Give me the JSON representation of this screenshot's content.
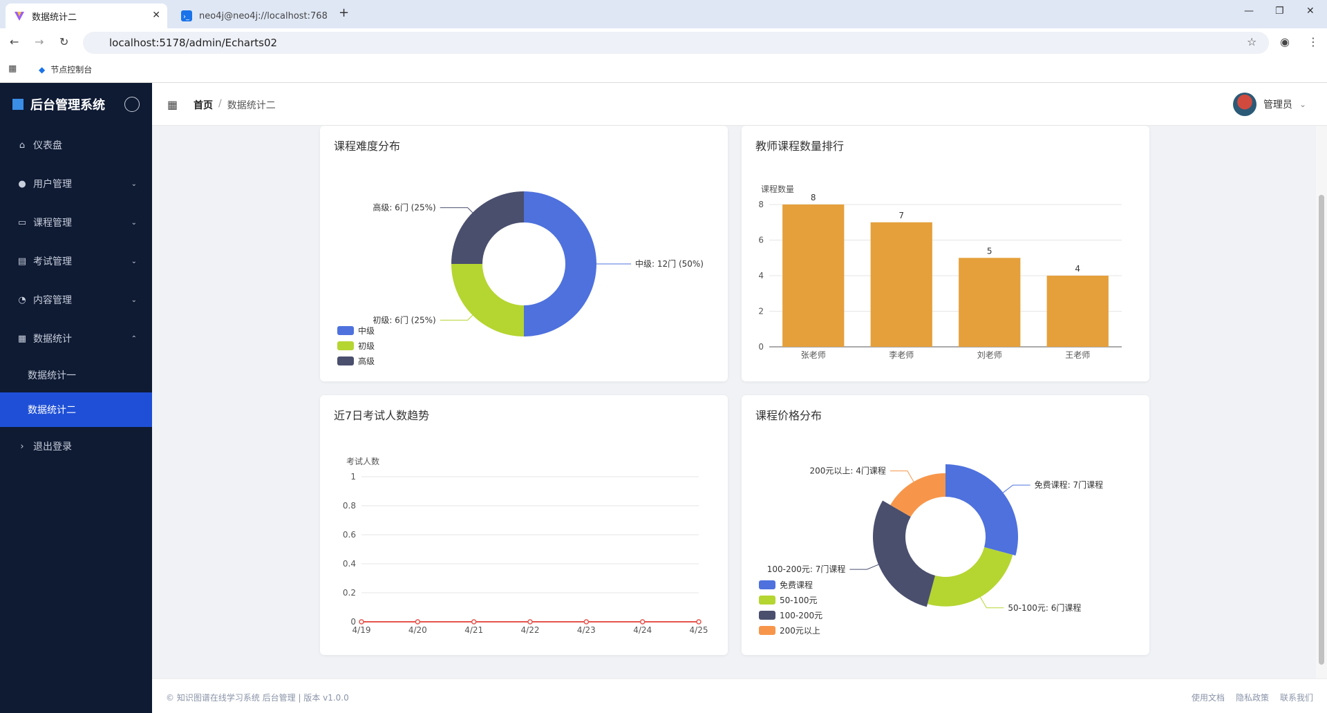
{
  "browser": {
    "tabs": [
      {
        "title": "数据统计二",
        "active": true
      },
      {
        "title": "neo4j@neo4j://localhost:768",
        "active": false
      }
    ],
    "url": "localhost:5178/admin/Echarts02",
    "bookmark": "节点控制台"
  },
  "sidebar": {
    "brand": "后台管理系统",
    "items": [
      {
        "label": "仪表盘",
        "icon": "home-icon"
      },
      {
        "label": "用户管理",
        "icon": "user-icon"
      },
      {
        "label": "课程管理",
        "icon": "book-icon"
      },
      {
        "label": "考试管理",
        "icon": "document-icon"
      },
      {
        "label": "内容管理",
        "icon": "bell-icon"
      },
      {
        "label": "数据统计",
        "icon": "chart-icon"
      }
    ],
    "sub_items": [
      {
        "label": "数据统计一",
        "active": false
      },
      {
        "label": "数据统计二",
        "active": true
      }
    ],
    "logout": "退出登录"
  },
  "header": {
    "breadcrumb_home": "首页",
    "breadcrumb_sep": "/",
    "breadcrumb_current": "数据统计二",
    "user_name": "管理员"
  },
  "cards": {
    "difficulty_title": "课程难度分布",
    "teacher_title": "教师课程数量排行",
    "trend_title": "近7日考试人数趋势",
    "price_title": "课程价格分布"
  },
  "chart_data": [
    {
      "type": "pie",
      "title": "课程难度分布",
      "categories": [
        "中级",
        "初级",
        "高级"
      ],
      "values": [
        12,
        6,
        6
      ],
      "labels": [
        "中级: 12门 (50%)",
        "初级: 6门 (25%)",
        "高级: 6门 (25%)"
      ],
      "colors": [
        "#4e71dd",
        "#b5d531",
        "#4a4f6e"
      ],
      "legend": "bottom-left"
    },
    {
      "type": "bar",
      "title": "教师课程数量排行",
      "ylabel": "课程数量",
      "categories": [
        "张老师",
        "李老师",
        "刘老师",
        "王老师"
      ],
      "values": [
        8,
        7,
        5,
        4
      ],
      "ylim": [
        0,
        8
      ],
      "yticks": [
        0,
        2,
        4,
        6,
        8
      ],
      "color": "#e5a03b",
      "grid": true
    },
    {
      "type": "line",
      "title": "近7日考试人数趋势",
      "ylabel": "考试人数",
      "categories": [
        "4/19",
        "4/20",
        "4/21",
        "4/22",
        "4/23",
        "4/24",
        "4/25"
      ],
      "values": [
        0,
        0,
        0,
        0,
        0,
        0,
        0
      ],
      "ylim": [
        0,
        1
      ],
      "yticks": [
        "0",
        "0.2",
        "0.4",
        "0.6",
        "0.8",
        "1"
      ],
      "color": "#e5534b",
      "grid": true
    },
    {
      "type": "pie",
      "title": "课程价格分布",
      "categories": [
        "免费课程",
        "50-100元",
        "100-200元",
        "200元以上"
      ],
      "values": [
        7,
        6,
        7,
        4
      ],
      "labels": [
        "免费课程: 7门课程",
        "50-100元: 6门课程",
        "100-200元: 7门课程",
        "200元以上: 4门课程"
      ],
      "colors": [
        "#4e71dd",
        "#b5d531",
        "#4a4f6e",
        "#f7964a"
      ],
      "legend": "bottom-left"
    }
  ],
  "footer": {
    "copyright": "© 知识图谱在线学习系统 后台管理 | 版本 v1.0.0",
    "links": [
      "使用文档",
      "隐私政策",
      "联系我们"
    ]
  }
}
